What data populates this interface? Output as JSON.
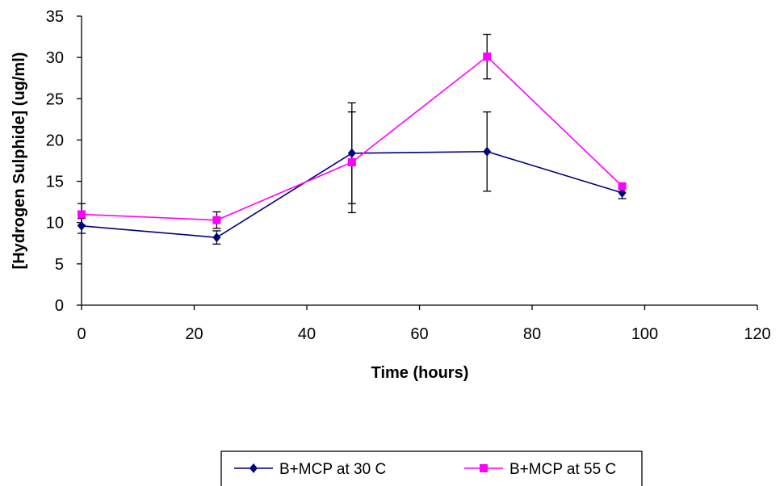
{
  "chart_data": {
    "type": "line",
    "title": "",
    "xlabel": "Time (hours)",
    "ylabel": "[Hydrogen Sulphide] (ug/ml)",
    "xlim": [
      0,
      120
    ],
    "ylim": [
      0,
      35
    ],
    "xticks": [
      0,
      20,
      40,
      60,
      80,
      100,
      120
    ],
    "yticks": [
      0,
      5,
      10,
      15,
      20,
      25,
      30,
      35
    ],
    "grid": false,
    "legend_position": "bottom",
    "series": [
      {
        "name": "B+MCP at 30 C",
        "color": "#000080",
        "marker": "diamond",
        "x": [
          0,
          24,
          48,
          72,
          96
        ],
        "y": [
          9.6,
          8.2,
          18.4,
          18.6,
          13.6
        ],
        "error": [
          0.9,
          0.8,
          6.1,
          4.8,
          0.7
        ]
      },
      {
        "name": "B+MCP at 55 C",
        "color": "#FF00FF",
        "marker": "square",
        "x": [
          0,
          24,
          48,
          72,
          96
        ],
        "y": [
          11.0,
          10.3,
          17.3,
          30.1,
          14.4
        ],
        "error": [
          1.3,
          1.0,
          6.1,
          2.7,
          0.4
        ]
      }
    ]
  }
}
